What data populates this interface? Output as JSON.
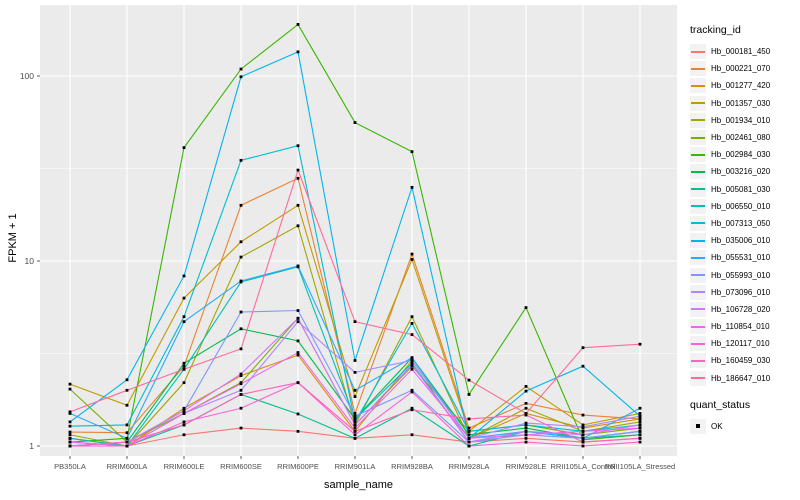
{
  "chart_data": {
    "type": "line",
    "title": "",
    "xlabel": "sample_name",
    "ylabel": "FPKM + 1",
    "yscale": "log10",
    "ylim": [
      1,
      230
    ],
    "yticks": [
      1,
      10,
      100
    ],
    "ytick_labels": [
      "1",
      "10",
      "100"
    ],
    "minor_gridlines": [
      3.162,
      31.62
    ],
    "grid": true,
    "panel_background": "#EBEBEB",
    "gridline_color": "#FFFFFF",
    "tick_label_color": "#4D4D4D",
    "point_color": "#000000",
    "point_shape": "square",
    "legend": {
      "title": "tracking_id",
      "position": "right"
    },
    "quant_status": {
      "title": "quant_status",
      "label": "OK"
    },
    "categories": [
      "PB350LA",
      "RRIM600LA",
      "RRIM600LE",
      "RRIM600SE",
      "RRIM600PE",
      "RRIM901LA",
      "RRIM928BA",
      "RRIM928LA",
      "RRIM928LE",
      "RRII105LA_Control",
      "RRII105LA_Stressed"
    ],
    "series": [
      {
        "name": "Hb_000181_450",
        "color": "#F8766D",
        "values": [
          1.1,
          1.0,
          1.15,
          1.25,
          1.2,
          1.1,
          1.15,
          1.05,
          1.1,
          1.05,
          1.1
        ]
      },
      {
        "name": "Hb_000221_070",
        "color": "#EA8331",
        "values": [
          1.19,
          1.18,
          2.7,
          20.0,
          28.0,
          1.5,
          10.9,
          1.25,
          1.7,
          1.47,
          1.4
        ]
      },
      {
        "name": "Hb_001277_420",
        "color": "#D89000",
        "values": [
          1.1,
          1.0,
          1.6,
          2.4,
          3.1,
          1.2,
          2.9,
          1.1,
          1.5,
          1.25,
          1.4
        ]
      },
      {
        "name": "Hb_001357_030",
        "color": "#C09B00",
        "values": [
          2.16,
          1.66,
          6.3,
          12.7,
          20.0,
          1.85,
          10.2,
          1.2,
          2.1,
          1.3,
          1.5
        ]
      },
      {
        "name": "Hb_001934_010",
        "color": "#A3A500",
        "values": [
          1.15,
          1.0,
          2.2,
          10.5,
          15.5,
          1.3,
          5.0,
          1.1,
          1.6,
          1.2,
          1.35
        ]
      },
      {
        "name": "Hb_002461_080",
        "color": "#7CAE00",
        "values": [
          2.03,
          1.05,
          1.5,
          2.2,
          4.9,
          1.3,
          2.7,
          1.2,
          1.3,
          1.15,
          1.25
        ]
      },
      {
        "name": "Hb_002984_030",
        "color": "#39B600",
        "values": [
          1.05,
          1.1,
          41.0,
          109.0,
          190.0,
          56.0,
          39.0,
          1.9,
          5.6,
          1.08,
          1.15
        ]
      },
      {
        "name": "Hb_003216_020",
        "color": "#00BB4E",
        "values": [
          1.0,
          1.05,
          2.8,
          4.3,
          3.7,
          1.4,
          3.0,
          1.15,
          1.25,
          1.1,
          1.2
        ]
      },
      {
        "name": "Hb_005081_030",
        "color": "#00C08D",
        "values": [
          1.05,
          1.0,
          1.3,
          1.9,
          1.49,
          1.1,
          1.6,
          1.0,
          1.2,
          1.1,
          1.15
        ]
      },
      {
        "name": "Hb_006550_010",
        "color": "#00C0B6",
        "values": [
          1.1,
          1.0,
          2.6,
          7.7,
          9.3,
          1.4,
          2.8,
          1.05,
          1.2,
          1.1,
          1.2
        ]
      },
      {
        "name": "Hb_007313_050",
        "color": "#00BDD1",
        "values": [
          1.28,
          1.3,
          5.0,
          35.0,
          42.0,
          1.35,
          4.6,
          1.2,
          1.3,
          1.2,
          1.3
        ]
      },
      {
        "name": "Hb_035006_010",
        "color": "#00B5EC",
        "values": [
          1.35,
          2.28,
          8.3,
          99.0,
          135.0,
          2.9,
          25.0,
          1.1,
          1.98,
          2.7,
          1.45
        ]
      },
      {
        "name": "Hb_055531_010",
        "color": "#29A9FF",
        "values": [
          1.5,
          1.1,
          4.7,
          7.8,
          9.4,
          2.0,
          3.0,
          1.1,
          1.2,
          1.1,
          1.6
        ]
      },
      {
        "name": "Hb_055993_010",
        "color": "#7E96FF",
        "values": [
          1.0,
          1.05,
          1.55,
          5.3,
          5.4,
          1.45,
          2.0,
          1.05,
          1.15,
          1.1,
          1.2
        ]
      },
      {
        "name": "Hb_073096_010",
        "color": "#AE87FF",
        "values": [
          1.05,
          1.0,
          1.5,
          2.0,
          4.7,
          2.5,
          2.9,
          1.1,
          1.33,
          1.27,
          1.45
        ]
      },
      {
        "name": "Hb_106728_020",
        "color": "#D277FF",
        "values": [
          1.0,
          1.05,
          1.55,
          2.45,
          4.9,
          1.3,
          2.75,
          1.05,
          1.2,
          1.15,
          1.3
        ]
      },
      {
        "name": "Hb_110854_010",
        "color": "#EC69EF",
        "values": [
          1.05,
          1.0,
          1.5,
          2.17,
          3.2,
          1.25,
          2.6,
          1.1,
          1.15,
          1.2,
          1.25
        ]
      },
      {
        "name": "Hb_120117_010",
        "color": "#FB61D7",
        "values": [
          1.0,
          1.0,
          1.35,
          1.6,
          2.2,
          1.15,
          1.96,
          1.0,
          1.05,
          1.0,
          1.05
        ]
      },
      {
        "name": "Hb_160459_030",
        "color": "#FF62BB",
        "values": [
          1.0,
          1.05,
          1.3,
          1.9,
          2.2,
          1.2,
          1.57,
          1.4,
          1.47,
          1.05,
          1.1
        ]
      },
      {
        "name": "Hb_186647_010",
        "color": "#FF6A9A",
        "values": [
          1.53,
          2.0,
          2.6,
          3.35,
          31.0,
          4.7,
          4.0,
          2.27,
          1.5,
          3.4,
          3.55
        ]
      }
    ]
  }
}
